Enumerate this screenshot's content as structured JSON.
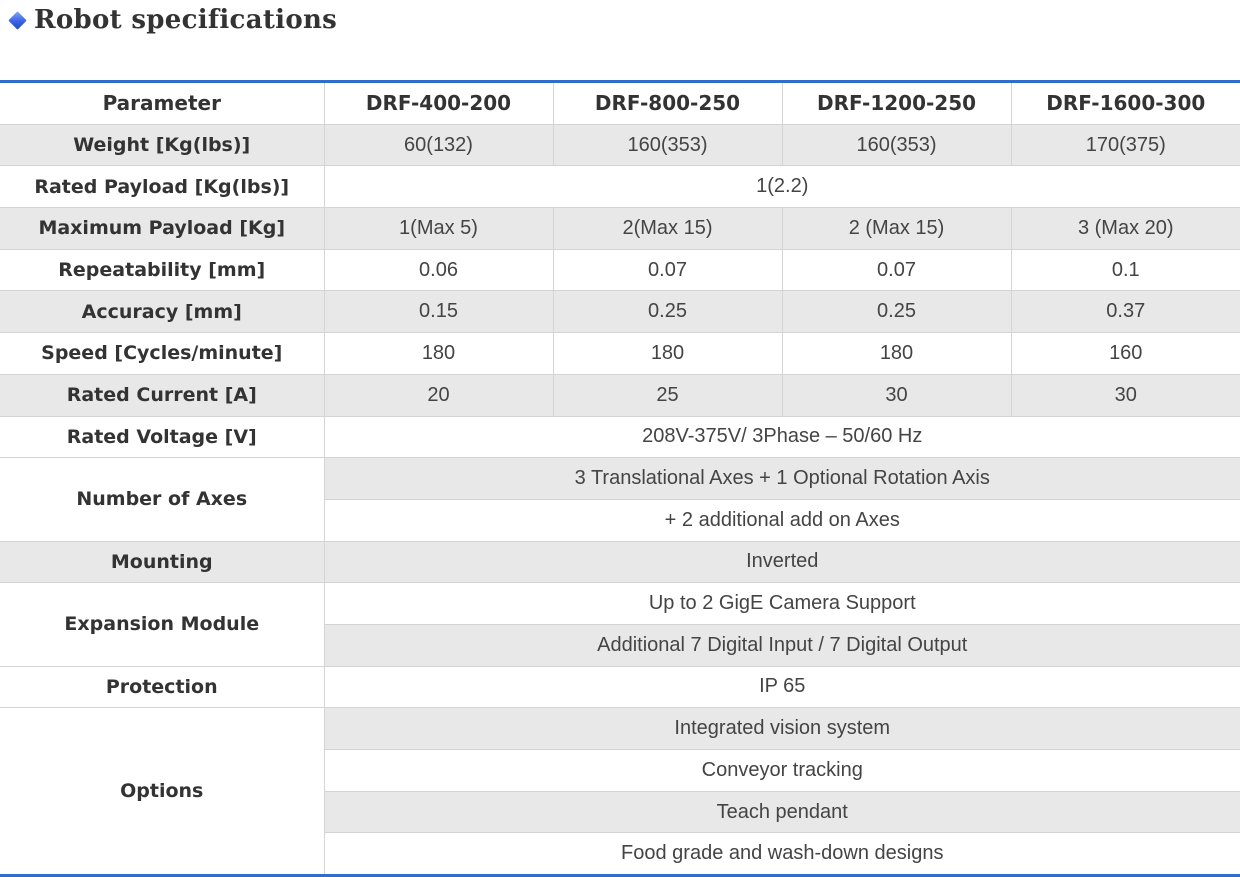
{
  "page": {
    "title": "Robot specifications",
    "title_icon": "diamond-bullet-icon",
    "accent_color": "#2f6fc9",
    "row_shade_color": "#e8e8e8"
  },
  "table": {
    "header": {
      "parameter": "Parameter",
      "models": [
        "DRF-400-200",
        "DRF-800-250",
        "DRF-1200-250",
        "DRF-1600-300"
      ]
    },
    "weight": {
      "label": "Weight [Kg(lbs)]",
      "values": [
        "60(132)",
        "160(353)",
        "160(353)",
        "170(375)"
      ]
    },
    "rated_payload": {
      "label": "Rated Payload [Kg(lbs)]",
      "value": "1(2.2)"
    },
    "max_payload": {
      "label": "Maximum Payload [Kg]",
      "values": [
        "1(Max 5)",
        "2(Max 15)",
        "2 (Max 15)",
        "3 (Max 20)"
      ]
    },
    "repeatability": {
      "label": "Repeatability [mm]",
      "values": [
        "0.06",
        "0.07",
        "0.07",
        "0.1"
      ]
    },
    "accuracy": {
      "label": "Accuracy [mm]",
      "values": [
        "0.15",
        "0.25",
        "0.25",
        "0.37"
      ]
    },
    "speed": {
      "label": "Speed [Cycles/minute]",
      "values": [
        "180",
        "180",
        "180",
        "160"
      ]
    },
    "rated_current": {
      "label": "Rated Current [A]",
      "values": [
        "20",
        "25",
        "30",
        "30"
      ]
    },
    "rated_voltage": {
      "label": "Rated Voltage [V]",
      "value": "208V-375V/ 3Phase – 50/60 Hz"
    },
    "axes": {
      "label": "Number of Axes",
      "lines": [
        "3 Translational Axes + 1 Optional Rotation Axis",
        "+ 2 additional add on Axes"
      ]
    },
    "mounting": {
      "label": "Mounting",
      "value": "Inverted"
    },
    "expansion": {
      "label": "Expansion Module",
      "lines": [
        "Up to 2 GigE Camera Support",
        "Additional 7 Digital Input / 7 Digital Output"
      ]
    },
    "protection": {
      "label": "Protection",
      "value": "IP 65"
    },
    "options": {
      "label": "Options",
      "lines": [
        "Integrated vision system",
        "Conveyor tracking",
        "Teach pendant",
        "Food grade and wash-down designs"
      ]
    }
  }
}
